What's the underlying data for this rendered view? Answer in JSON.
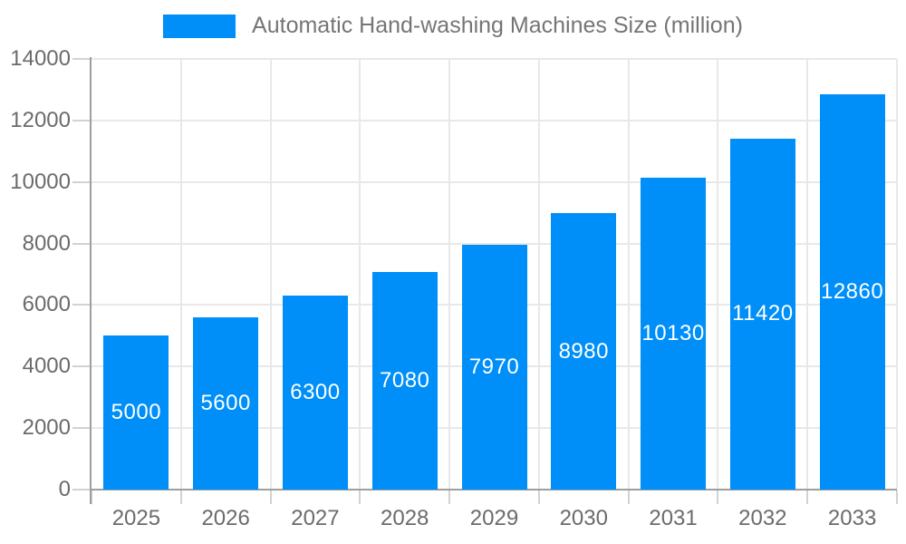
{
  "legend": {
    "label": "Automatic Hand-washing Machines Size (million)"
  },
  "chart_data": {
    "type": "bar",
    "title": "Automatic Hand-washing Machines Size (million)",
    "categories": [
      "2025",
      "2026",
      "2027",
      "2028",
      "2029",
      "2030",
      "2031",
      "2032",
      "2033"
    ],
    "series": [
      {
        "name": "Automatic Hand-washing Machines Size (million)",
        "values": [
          5000,
          5600,
          6300,
          7080,
          7970,
          8980,
          10130,
          11420,
          12860
        ]
      }
    ],
    "bar_value_labels": [
      "5000",
      "5600",
      "6300",
      "7080",
      "7970",
      "8980",
      "10130",
      "11420",
      "12860"
    ],
    "xlabel": "",
    "ylabel": "",
    "ylim": [
      0,
      14000
    ],
    "yticks": [
      0,
      2000,
      4000,
      6000,
      8000,
      10000,
      12000,
      14000
    ],
    "ytick_labels": [
      "0",
      "2000",
      "4000",
      "6000",
      "8000",
      "10000",
      "12000",
      "14000"
    ],
    "grid": true,
    "legend_position": "top",
    "value_label_position": "inside-center",
    "colors": {
      "bar": "#008FF8",
      "grid": "#E8E8E8",
      "axis": "#9E9E9E",
      "tick": "#D2D2D2",
      "tick_label_text": "#6B6B6B",
      "legend_text": "#757575",
      "bar_label_text": "#FFFFFF",
      "background": "#FFFFFF"
    }
  }
}
